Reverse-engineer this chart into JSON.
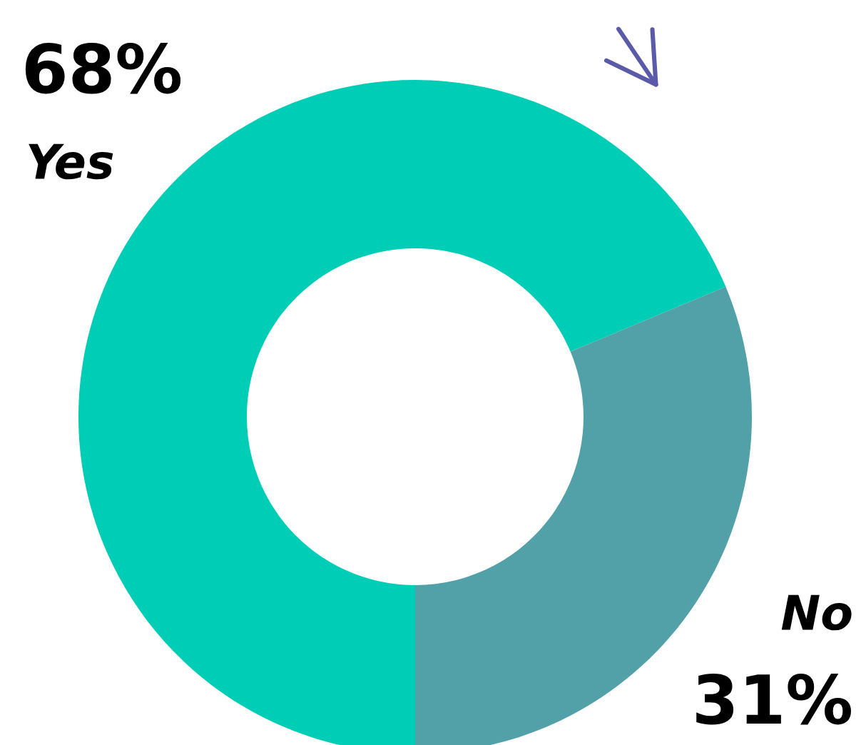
{
  "chart_data": {
    "type": "donut",
    "categories": [
      "Yes",
      "No"
    ],
    "values": [
      68,
      31
    ],
    "colors": [
      "#00cdb5",
      "#52a0a8"
    ],
    "value_labels": [
      "68%",
      "31%"
    ]
  }
}
